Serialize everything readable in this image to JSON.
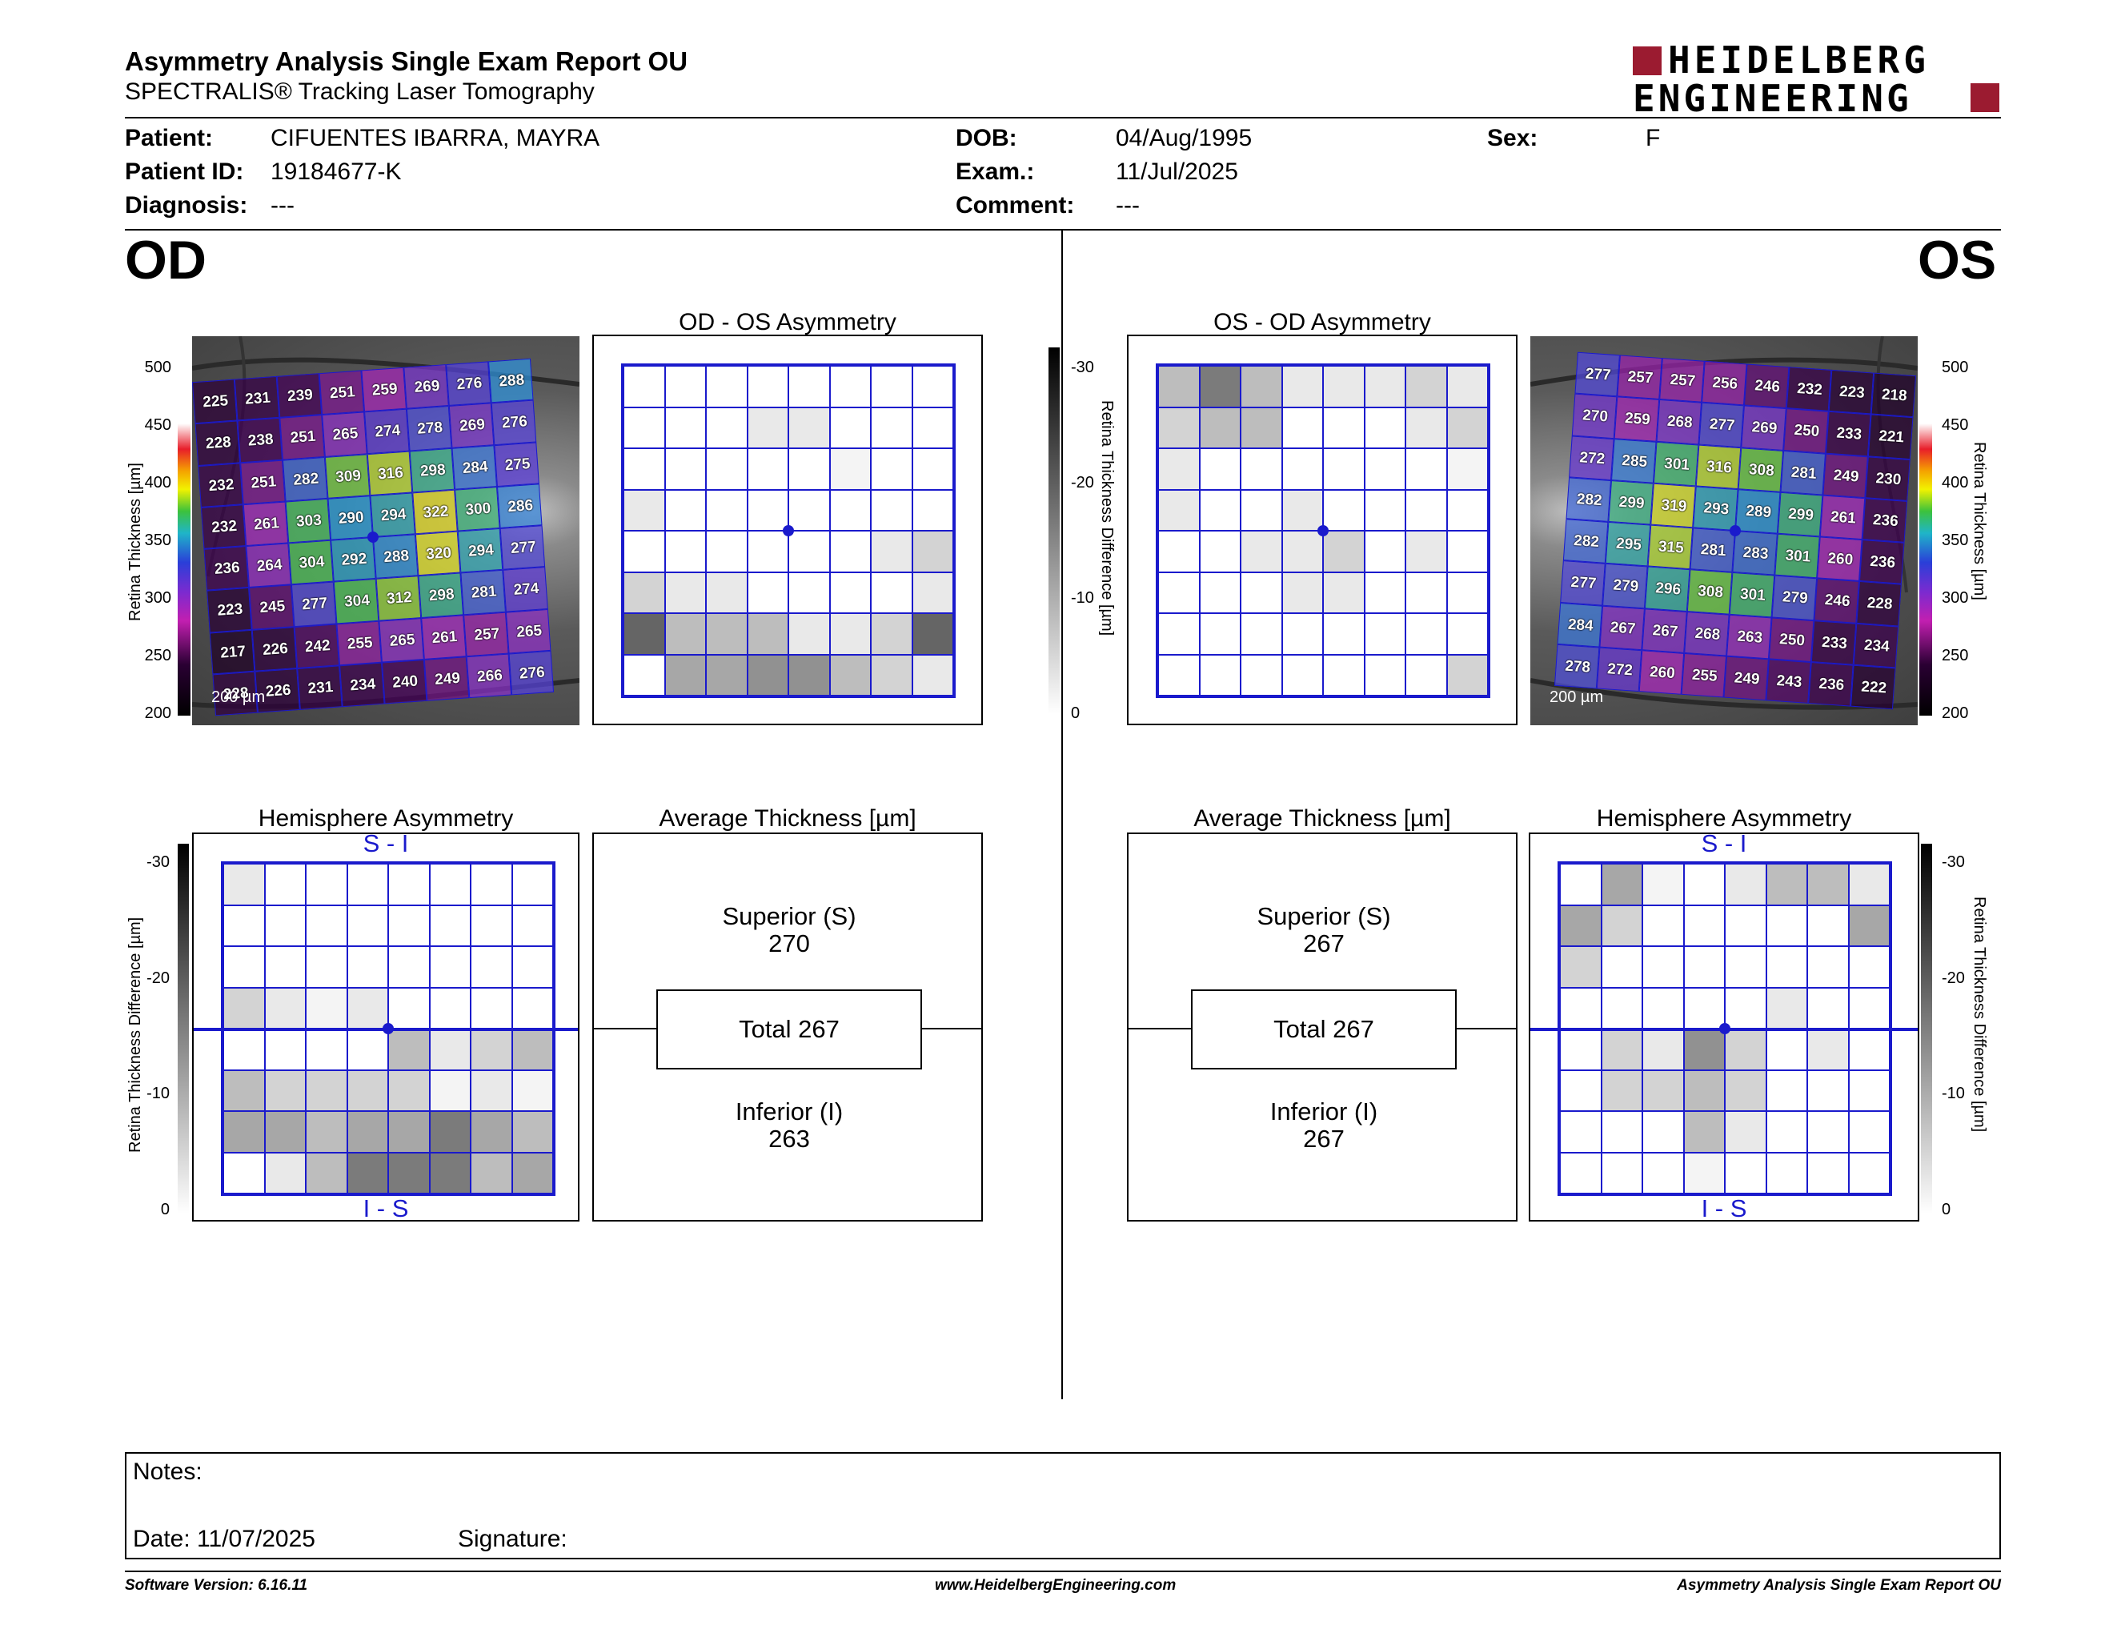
{
  "header": {
    "title": "Asymmetry Analysis Single Exam Report OU",
    "subtitle": "SPECTRALIS® Tracking Laser Tomography",
    "logo_line1": "HEIDELBERG",
    "logo_line2": "ENGINEERING"
  },
  "patient": {
    "patient_label": "Patient:",
    "patient_value": "CIFUENTES IBARRA, MAYRA",
    "id_label": "Patient ID:",
    "id_value": "19184677-K",
    "diagnosis_label": "Diagnosis:",
    "diagnosis_value": "---",
    "dob_label": "DOB:",
    "dob_value": "04/Aug/1995",
    "exam_label": "Exam.:",
    "exam_value": "11/Jul/2025",
    "comment_label": "Comment:",
    "comment_value": "---",
    "sex_label": "Sex:",
    "sex_value": "F"
  },
  "od": {
    "eye_label": "OD",
    "asym_title": "OD - OS Asymmetry",
    "hemi_title": "Hemisphere Asymmetry",
    "hemi_top": "S - I",
    "hemi_bottom": "I - S",
    "avg_title": "Average Thickness [µm]",
    "superior_label": "Superior (S)",
    "superior_value": "270",
    "total_text": "Total 267",
    "inferior_label": "Inferior (I)",
    "inferior_value": "263",
    "scale_label": "200 µm",
    "thickness": [
      [
        225,
        231,
        239,
        251,
        259,
        269,
        276,
        288
      ],
      [
        228,
        238,
        251,
        265,
        274,
        278,
        269,
        276
      ],
      [
        232,
        251,
        282,
        309,
        316,
        298,
        284,
        275
      ],
      [
        232,
        261,
        303,
        290,
        294,
        322,
        300,
        286
      ],
      [
        236,
        264,
        304,
        292,
        288,
        320,
        294,
        277
      ],
      [
        223,
        245,
        277,
        304,
        312,
        298,
        281,
        274
      ],
      [
        217,
        226,
        242,
        255,
        265,
        261,
        257,
        265
      ],
      [
        228,
        226,
        231,
        234,
        240,
        249,
        266,
        276
      ]
    ],
    "asym_gray": [
      [
        0,
        0,
        0,
        0,
        0,
        0,
        0,
        0
      ],
      [
        0,
        0,
        0,
        1,
        1,
        0,
        0,
        0
      ],
      [
        0,
        0,
        0,
        0,
        0,
        0.5,
        0,
        0
      ],
      [
        1,
        0,
        0,
        0,
        0,
        0,
        0,
        0
      ],
      [
        0,
        0,
        0,
        0,
        0,
        0,
        1,
        2
      ],
      [
        2,
        1,
        1,
        0,
        0,
        0,
        0,
        1
      ],
      [
        7,
        3,
        3,
        3,
        1,
        1,
        2,
        7
      ],
      [
        0,
        4,
        4,
        5,
        5,
        3,
        2,
        1
      ]
    ],
    "hemi_gray": [
      [
        1,
        0,
        0,
        0,
        0,
        0,
        0,
        0
      ],
      [
        0,
        0,
        0,
        0,
        0,
        0,
        0,
        0
      ],
      [
        0,
        0,
        0,
        0,
        0,
        0,
        0,
        0
      ],
      [
        2,
        1,
        0.5,
        1,
        0,
        0,
        0,
        0
      ],
      [
        0,
        0,
        0,
        0,
        3,
        1,
        2,
        3
      ],
      [
        3,
        2,
        2,
        2,
        2,
        0.5,
        1,
        0.5
      ],
      [
        4,
        4,
        3,
        4,
        4,
        6,
        4,
        3
      ],
      [
        0,
        1,
        3,
        6,
        6,
        6,
        3,
        4
      ]
    ]
  },
  "os": {
    "eye_label": "OS",
    "asym_title": "OS - OD Asymmetry",
    "hemi_title": "Hemisphere Asymmetry",
    "hemi_top": "S - I",
    "hemi_bottom": "I - S",
    "avg_title": "Average Thickness [µm]",
    "superior_label": "Superior (S)",
    "superior_value": "267",
    "total_text": "Total 267",
    "inferior_label": "Inferior (I)",
    "inferior_value": "267",
    "scale_label": "200 µm",
    "thickness": [
      [
        277,
        257,
        257,
        256,
        246,
        232,
        223,
        218
      ],
      [
        270,
        259,
        268,
        277,
        269,
        250,
        233,
        221
      ],
      [
        272,
        285,
        301,
        316,
        308,
        281,
        249,
        230
      ],
      [
        282,
        299,
        319,
        293,
        289,
        299,
        261,
        236
      ],
      [
        282,
        295,
        315,
        281,
        283,
        301,
        260,
        236
      ],
      [
        277,
        279,
        296,
        308,
        301,
        279,
        246,
        228
      ],
      [
        284,
        267,
        267,
        268,
        263,
        250,
        233,
        234
      ],
      [
        278,
        272,
        260,
        255,
        249,
        243,
        236,
        222
      ]
    ],
    "asym_gray": [
      [
        3,
        6,
        3,
        1,
        1,
        1,
        2,
        1
      ],
      [
        2,
        3,
        3,
        0,
        0,
        0,
        1,
        2
      ],
      [
        1,
        0,
        0,
        0,
        0,
        0,
        0,
        0.5
      ],
      [
        1,
        0,
        0,
        1,
        0,
        0,
        0,
        0
      ],
      [
        0,
        0,
        1,
        1,
        2,
        0,
        1,
        0
      ],
      [
        0,
        0,
        0,
        1,
        1,
        0,
        0,
        0
      ],
      [
        0,
        0,
        0,
        0,
        0,
        0,
        0,
        0
      ],
      [
        0,
        0,
        0,
        0,
        0,
        0,
        0,
        2
      ]
    ],
    "hemi_gray": [
      [
        0,
        4,
        0.5,
        0,
        1,
        3,
        3,
        1
      ],
      [
        4,
        2,
        0,
        0,
        0,
        0,
        0,
        4
      ],
      [
        2,
        0,
        0,
        0,
        0,
        0,
        0,
        0
      ],
      [
        0,
        0,
        0,
        0,
        0,
        1,
        0,
        0
      ],
      [
        0,
        2,
        1,
        5,
        2,
        0,
        1,
        0
      ],
      [
        0,
        2,
        2,
        3,
        2,
        0,
        0,
        0
      ],
      [
        0,
        0,
        0,
        3,
        1,
        0,
        0,
        0
      ],
      [
        0,
        0,
        0,
        0.5,
        0,
        0,
        0,
        0
      ]
    ]
  },
  "colorbar": {
    "thickness_label": "Retina Thickness [µm]",
    "thickness_ticks": [
      "500",
      "450",
      "400",
      "350",
      "300",
      "250",
      "200"
    ],
    "diff_label": "Retina Thickness Difference [µm]",
    "diff_ticks": [
      "-30",
      "-20",
      "-10",
      "0"
    ]
  },
  "notes": {
    "notes_label": "Notes:",
    "date_label": "Date: 11/07/2025",
    "signature_label": "Signature:"
  },
  "footer": {
    "version": "Software Version: 6.16.11",
    "website": "www.HeidelbergEngineering.com",
    "report": "Asymmetry Analysis Single Exam Report OU"
  },
  "colors": {
    "grid_blue": "#1a1acc",
    "logo_red": "#9b1b30"
  }
}
